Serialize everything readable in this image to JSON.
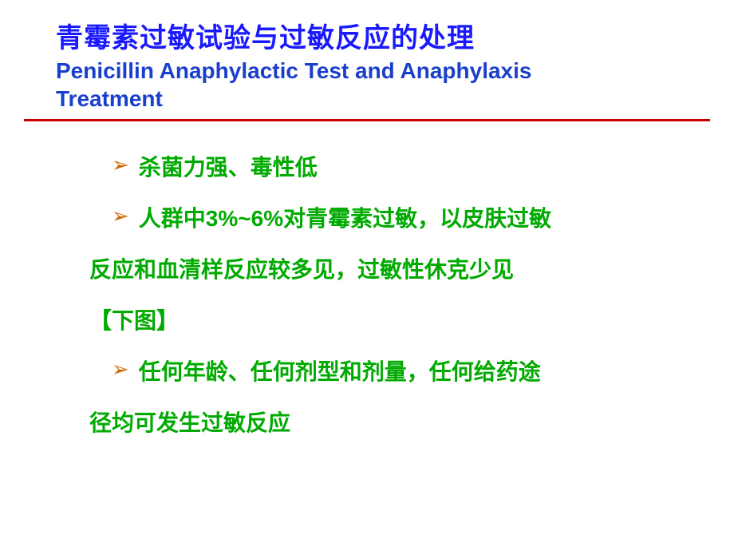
{
  "colors": {
    "title_cn": "#1a1aff",
    "title_en": "#1a3fcc",
    "divider": "#cc0000",
    "bullet_marker": "#cc6600",
    "content_text": "#00aa00",
    "background": "#ffffff"
  },
  "fonts": {
    "title_cn_size": 34,
    "title_en_size": 28,
    "body_size": 28,
    "marker_size": 26,
    "title_weight": "bold",
    "body_weight": "bold"
  },
  "title": {
    "cn": "青霉素过敏试验与过敏反应的处理",
    "en_line1": "Penicillin Anaphylactic Test and Anaphylaxis",
    "en_line2": "Treatment"
  },
  "bullets": [
    {
      "marker": "➢",
      "text": "杀菌力强、毒性低"
    },
    {
      "marker": "➢",
      "text": "人群中3%~6%对青霉素过敏，以皮肤过敏",
      "continuation": [
        "反应和血清样反应较多见，过敏性休克少见",
        "【下图】"
      ]
    },
    {
      "marker": "➢",
      "text": "任何年龄、任何剂型和剂量，任何给药途",
      "continuation": [
        "径均可发生过敏反应"
      ]
    }
  ]
}
